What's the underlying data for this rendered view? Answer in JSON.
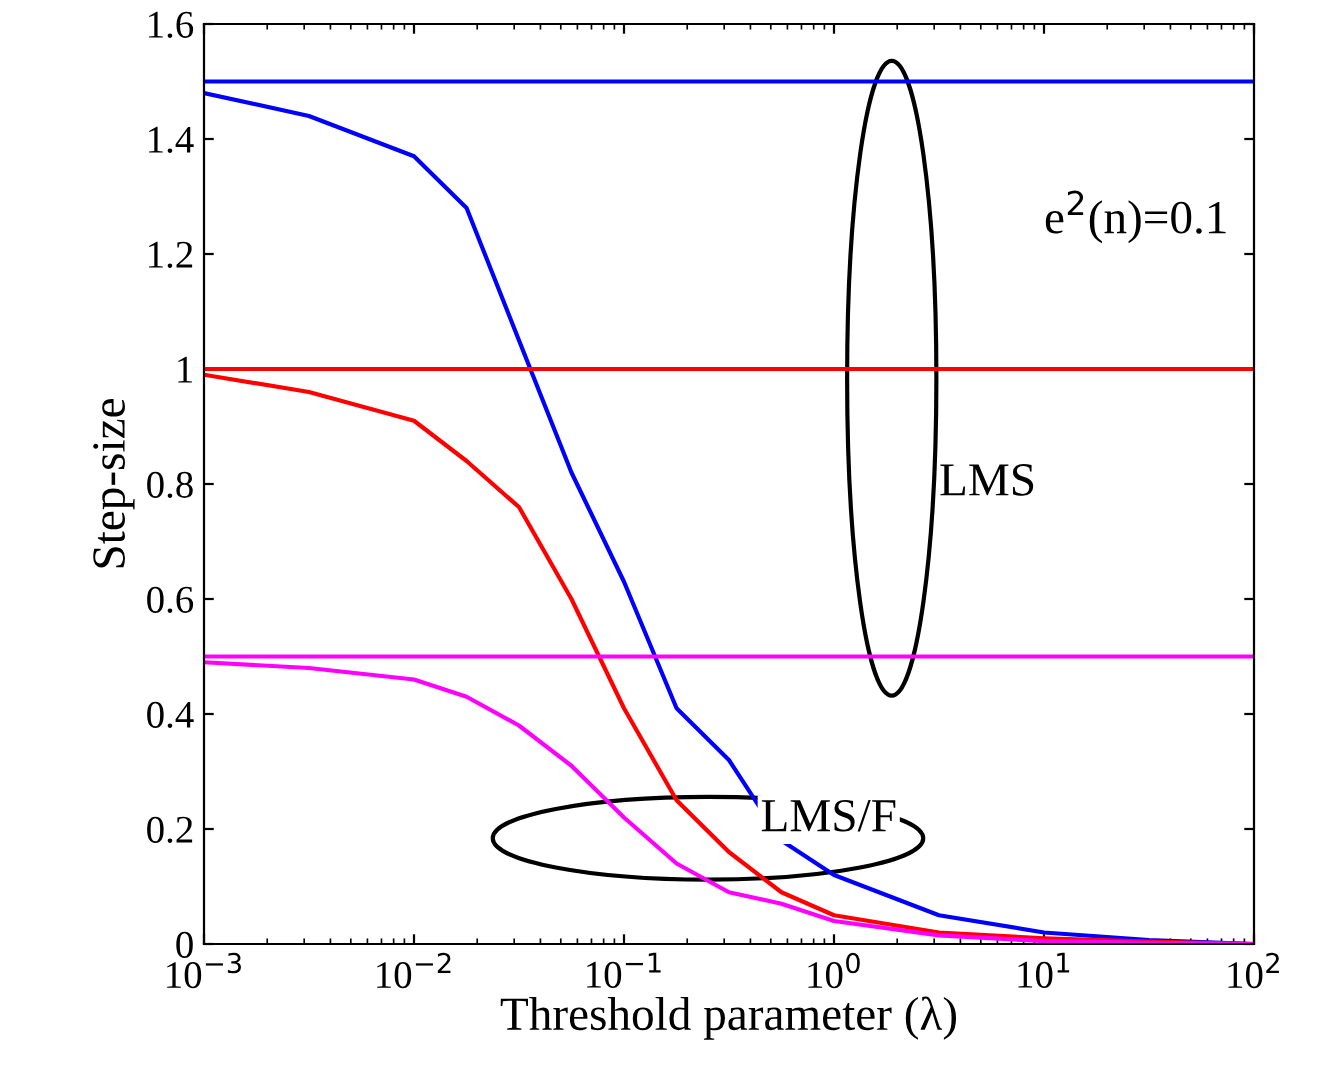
{
  "chart_data": {
    "type": "line",
    "xlabel": "Threshold parameter (λ)",
    "ylabel": "Step-size",
    "log": "x",
    "xlim": [
      0.001,
      100
    ],
    "xticks": [
      {
        "value": 0.001,
        "label": "10$^{−3}$"
      },
      {
        "value": 0.01,
        "label": "10$^{−2}$"
      },
      {
        "value": 0.1,
        "label": "10$^{−1}$"
      },
      {
        "value": 1,
        "label": "10$^{0}$"
      },
      {
        "value": 10,
        "label": "10$^{1}$"
      },
      {
        "value": 100,
        "label": "10$^{2}$"
      }
    ],
    "ylim": [
      0,
      1.6
    ],
    "yticks": [
      0,
      0.2,
      0.4,
      0.6,
      0.8,
      1,
      1.2,
      1.4,
      1.6
    ],
    "x": [
      0.001,
      0.00316,
      0.01,
      0.0178,
      0.0316,
      0.0562,
      0.1,
      0.178,
      0.316,
      0.562,
      1,
      3.16,
      10,
      31.6,
      100
    ],
    "series": [
      {
        "color": "#0000ff",
        "values": [
          1.48,
          1.44,
          1.37,
          1.28,
          1.05,
          0.82,
          0.63,
          0.41,
          0.32,
          0.18,
          0.12,
          0.05,
          0.02,
          0.007,
          0
        ]
      },
      {
        "color": "#ff0000",
        "values": [
          0.99,
          0.96,
          0.91,
          0.84,
          0.76,
          0.6,
          0.41,
          0.25,
          0.16,
          0.09,
          0.05,
          0.02,
          0.01,
          0.004,
          0
        ]
      },
      {
        "color": "#ff00ff",
        "values": [
          0.49,
          0.48,
          0.46,
          0.43,
          0.38,
          0.31,
          0.22,
          0.14,
          0.09,
          0.07,
          0.04,
          0.015,
          0.005,
          0.002,
          0
        ]
      }
    ],
    "ref_lines": [
      {
        "axis": "y",
        "value": 1.5,
        "color": "#0000ff"
      },
      {
        "axis": "y",
        "value": 1,
        "color": "#ff0000"
      },
      {
        "axis": "y",
        "value": 0.5,
        "color": "#ff00ff"
      }
    ],
    "annotations": [
      "e$^{2}$(n)=0.1",
      "LMS",
      "LMS/F"
    ],
    "grid": false,
    "legend": false
  }
}
